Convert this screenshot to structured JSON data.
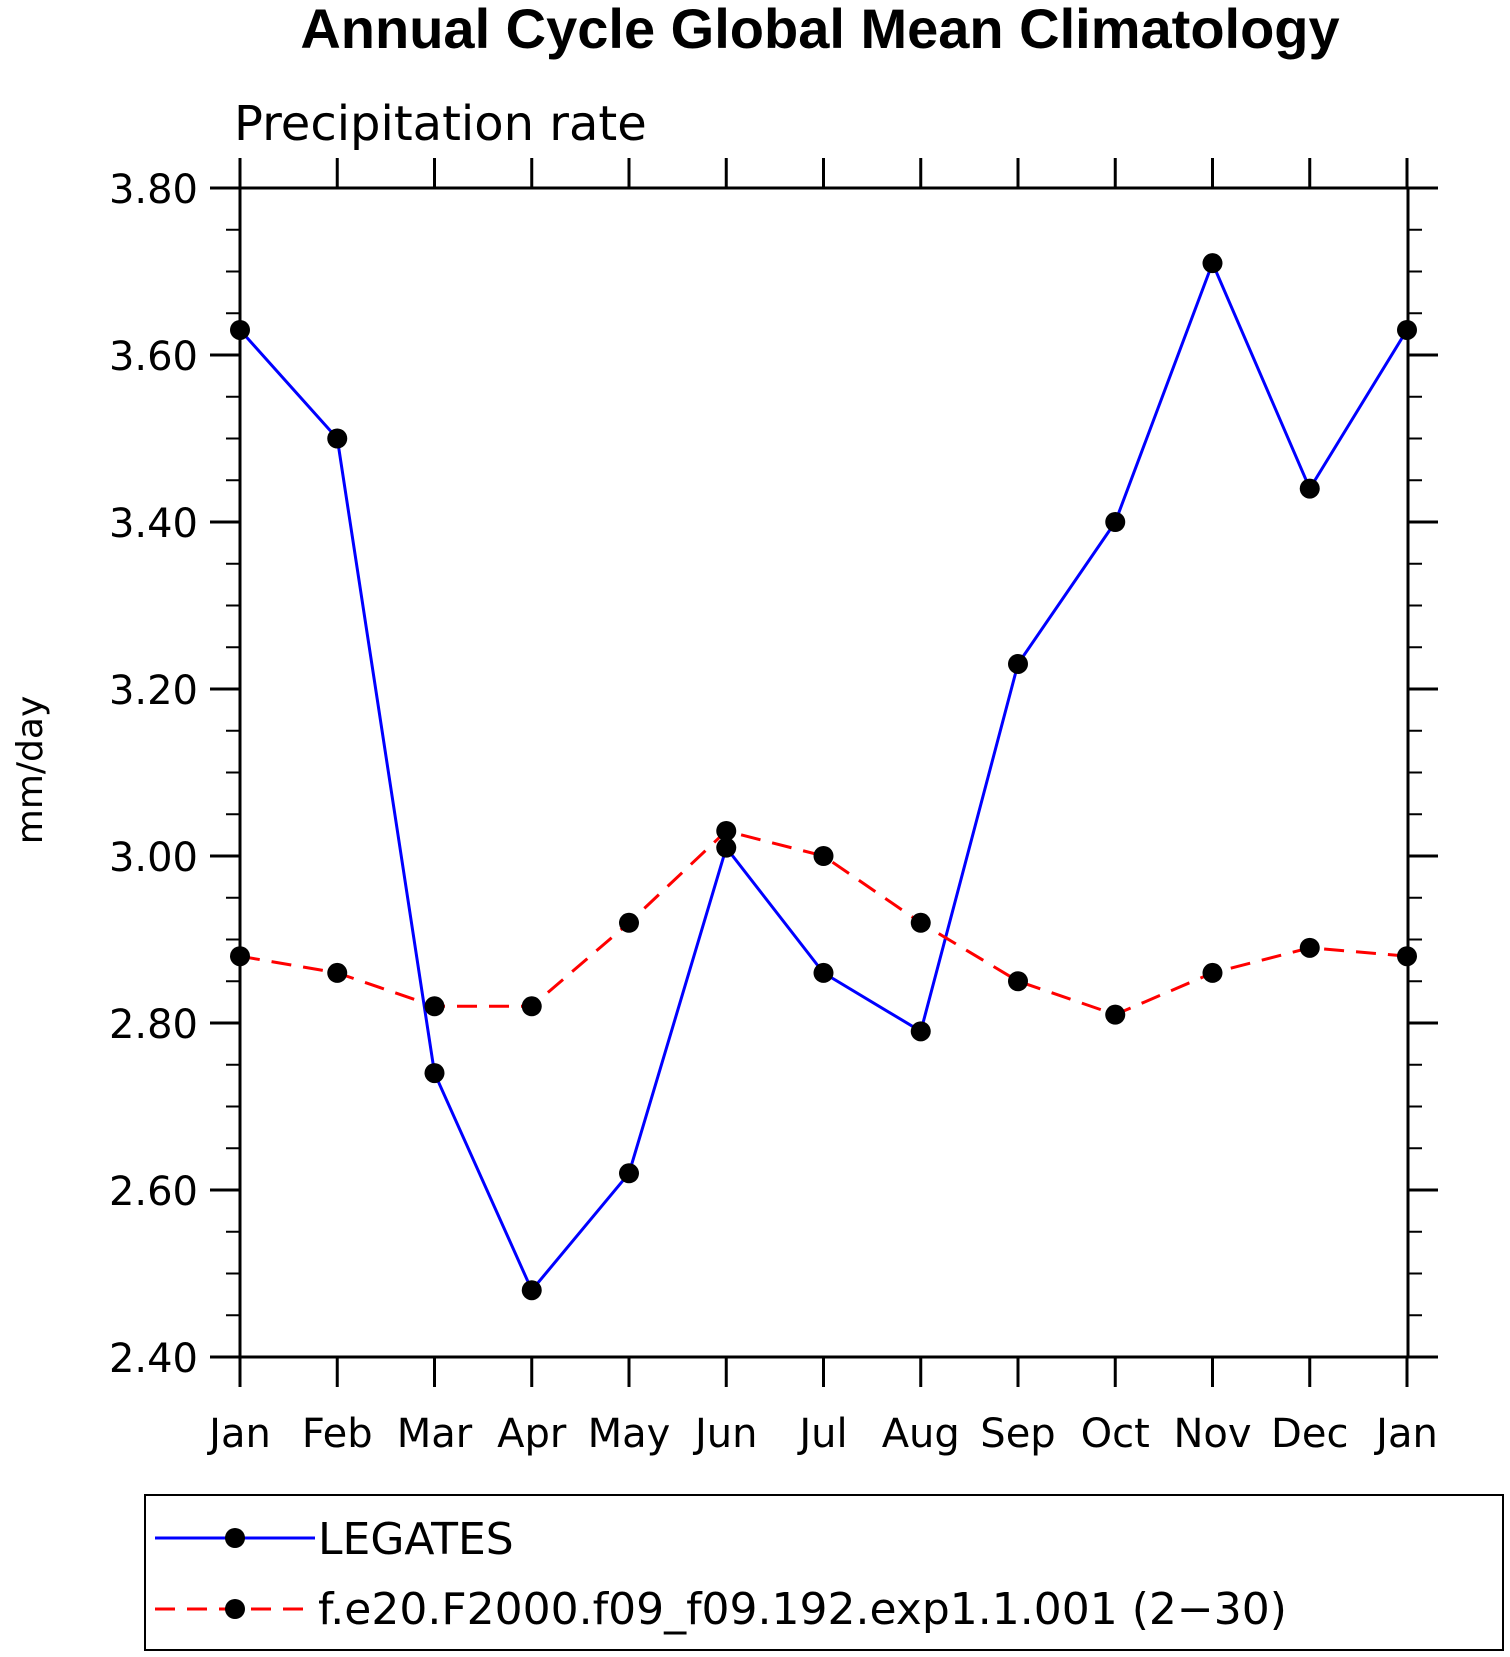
{
  "chart_data": {
    "type": "line",
    "title": "Annual Cycle Global Mean Climatology",
    "subtitle": "Precipitation rate",
    "xlabel": "",
    "ylabel": "mm/day",
    "categories": [
      "Jan",
      "Feb",
      "Mar",
      "Apr",
      "May",
      "Jun",
      "Jul",
      "Aug",
      "Sep",
      "Oct",
      "Nov",
      "Dec",
      "Jan"
    ],
    "ylim": [
      2.4,
      3.8
    ],
    "yticks": [
      2.4,
      2.6,
      2.8,
      3.0,
      3.2,
      3.4,
      3.6,
      3.8
    ],
    "ytick_labels": [
      "2.40",
      "2.60",
      "2.80",
      "3.00",
      "3.20",
      "3.40",
      "3.60",
      "3.80"
    ],
    "grid": false,
    "legend_position": "bottom",
    "series": [
      {
        "name": "LEGATES",
        "color": "#0000ff",
        "dash": "solid",
        "marker": "filled-circle",
        "values": [
          3.63,
          3.5,
          2.74,
          2.48,
          2.62,
          3.01,
          2.86,
          2.79,
          3.23,
          3.4,
          3.71,
          3.44,
          3.63
        ]
      },
      {
        "name": "f.e20.F2000.f09_f09.192.exp1.1.001 (2−30)",
        "color": "#ff0000",
        "dash": "dashed",
        "marker": "filled-circle",
        "values": [
          2.88,
          2.86,
          2.82,
          2.82,
          2.92,
          3.03,
          3.0,
          2.92,
          2.85,
          2.81,
          2.86,
          2.89,
          2.88
        ]
      }
    ]
  }
}
